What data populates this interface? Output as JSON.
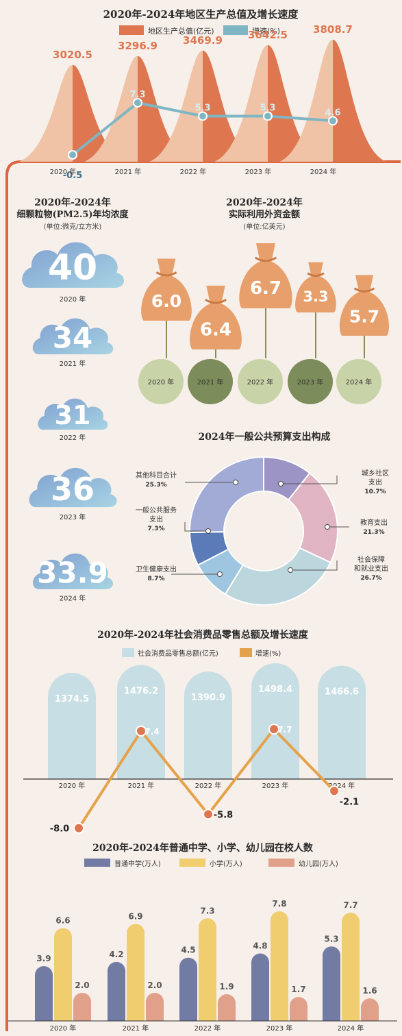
{
  "colors": {
    "background": "#f7efe9",
    "frame": "#d9673f",
    "gdp_front": "#de7650",
    "gdp_back": "#f0c3a6",
    "gdp_growth": "#7fb6c4",
    "cloud_light": "#a7d4e3",
    "cloud_dark": "#7f9fd0",
    "bag": "#e7a06c",
    "circle_light": "#c8d4a8",
    "circle_dark": "#7c8c5a",
    "pie_urban": "#9c94c4",
    "pie_education": "#e0b4c2",
    "pie_social": "#bcd6de",
    "pie_health": "#9ec6e0",
    "pie_public": "#5b7ab8",
    "pie_other": "#a2abd6",
    "retail_bar": "#c7dfe4",
    "retail_growth": "#e4a24a",
    "school_middle": "#727ba4",
    "school_primary": "#f0cd6e",
    "school_kinder": "#e0a08a"
  },
  "chart_data": [
    {
      "type": "area",
      "title": "2020年-2024年地区生产总值及增长速度",
      "categories": [
        "2020 年",
        "2021 年",
        "2022 年",
        "2023 年",
        "2024 年"
      ],
      "legend": [
        "地区生产总值(亿元)",
        "增速(%)"
      ],
      "series": [
        {
          "name": "地区生产总值(亿元)",
          "values": [
            3020.5,
            3296.9,
            3469.9,
            3642.5,
            3808.7
          ],
          "labels": [
            "3020.5",
            "3296.9",
            "3469.9",
            "3642.5",
            "3808.7"
          ]
        },
        {
          "name": "增速(%)",
          "values": [
            -0.5,
            7.3,
            5.3,
            5.3,
            4.6
          ],
          "labels": [
            "-0.5",
            "7.3",
            "5.3",
            "5.3",
            "4.6"
          ]
        }
      ]
    },
    {
      "type": "bar",
      "title": "2020年-2024年",
      "subtitle": "细颗粒物(PM2.5)年均浓度",
      "unit": "(单位:微克/立方米)",
      "categories": [
        "2020 年",
        "2021 年",
        "2022 年",
        "2023 年",
        "2024 年"
      ],
      "values": [
        40,
        34,
        31,
        36,
        33.9
      ],
      "labels": [
        "40",
        "34",
        "31",
        "36",
        "33.9"
      ]
    },
    {
      "type": "bar",
      "title": "2020年-2024年",
      "subtitle": "实际利用外资金额",
      "unit": "(单位:亿美元)",
      "categories": [
        "2020 年",
        "2021 年",
        "2022 年",
        "2023 年",
        "2024 年"
      ],
      "values": [
        6.0,
        6.4,
        6.7,
        3.3,
        5.7
      ],
      "labels": [
        "6.0",
        "6.4",
        "6.7",
        "3.3",
        "5.7"
      ]
    },
    {
      "type": "pie",
      "title": "2024年一般公共预算支出构成",
      "slices": [
        {
          "label_lines": [
            "城乡社区",
            "支出"
          ],
          "value": 10.7,
          "pct": "10.7%"
        },
        {
          "label_lines": [
            "教育支出"
          ],
          "value": 21.3,
          "pct": "21.3%"
        },
        {
          "label_lines": [
            "社会保障",
            "和就业支出"
          ],
          "value": 26.7,
          "pct": "26.7%"
        },
        {
          "label_lines": [
            "卫生健康支出"
          ],
          "value": 8.7,
          "pct": "8.7%"
        },
        {
          "label_lines": [
            "一般公共服务",
            "支出"
          ],
          "value": 7.3,
          "pct": "7.3%"
        },
        {
          "label_lines": [
            "其他科目合计"
          ],
          "value": 25.3,
          "pct": "25.3%"
        }
      ]
    },
    {
      "type": "bar",
      "title": "2020年-2024年社会消费品零售总额及增长速度",
      "categories": [
        "2020 年",
        "2021 年",
        "2022 年",
        "2023 年",
        "2024 年"
      ],
      "legend": [
        "社会消费品零售总额(亿元)",
        "增速(%)"
      ],
      "series": [
        {
          "name": "社会消费品零售总额(亿元)",
          "values": [
            1374.5,
            1476.2,
            1390.9,
            1498.4,
            1466.6
          ],
          "labels": [
            "1374.5",
            "1476.2",
            "1390.9",
            "1498.4",
            "1466.6"
          ]
        },
        {
          "name": "增速(%)",
          "values": [
            -8.0,
            7.4,
            -5.8,
            7.7,
            -2.1
          ],
          "labels": [
            "-8.0",
            "7.4",
            "-5.8",
            "7.7",
            "-2.1"
          ]
        }
      ]
    },
    {
      "type": "bar",
      "title": "2020年-2024年普通中学、小学、幼儿园在校人数",
      "categories": [
        "2020 年",
        "2021 年",
        "2022 年",
        "2023 年",
        "2024 年"
      ],
      "legend": [
        "普通中学(万人)",
        "小学(万人)",
        "幼儿园(万人)"
      ],
      "series": [
        {
          "name": "普通中学(万人)",
          "values": [
            3.9,
            4.2,
            4.5,
            4.8,
            5.3
          ],
          "labels": [
            "3.9",
            "4.2",
            "4.5",
            "4.8",
            "5.3"
          ]
        },
        {
          "name": "小学(万人)",
          "values": [
            6.6,
            6.9,
            7.3,
            7.8,
            7.7
          ],
          "labels": [
            "6.6",
            "6.9",
            "7.3",
            "7.8",
            "7.7"
          ]
        },
        {
          "name": "幼儿园(万人)",
          "values": [
            2.0,
            2.0,
            1.9,
            1.7,
            1.6
          ],
          "labels": [
            "2.0",
            "2.0",
            "1.9",
            "1.7",
            "1.6"
          ]
        }
      ]
    }
  ]
}
